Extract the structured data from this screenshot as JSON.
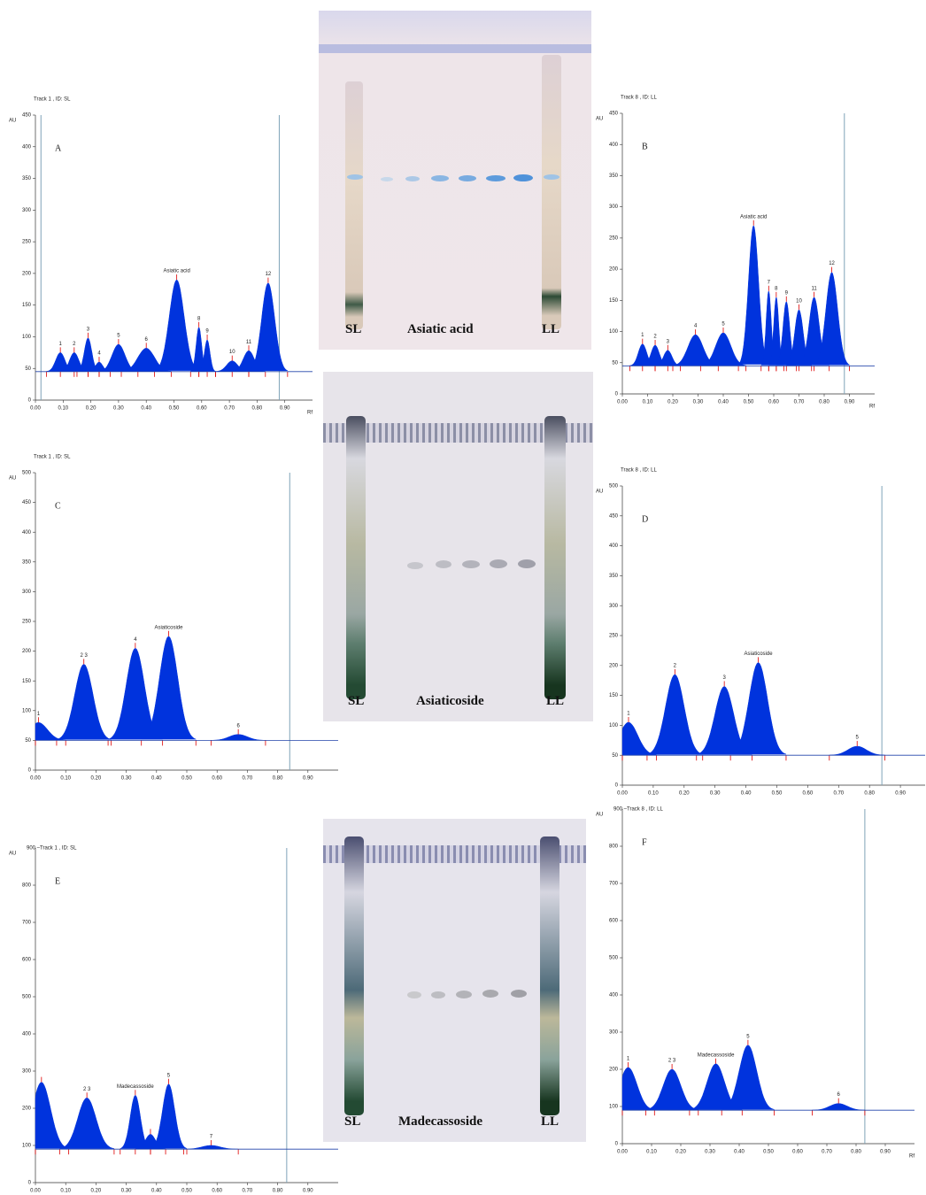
{
  "chart_data": [
    {
      "type": "area",
      "title": "Track 1 , ID: SL",
      "panel": "A",
      "ylabel": "AU",
      "xlabel": "Rf",
      "color": "#0033dd",
      "xlim": [
        0,
        1
      ],
      "ylim": [
        0,
        450
      ],
      "xticks": [
        {
          "value": 0,
          "label": "0.00"
        },
        {
          "value": 0.1,
          "label": "0.10"
        },
        {
          "value": 0.2,
          "label": "0.20"
        },
        {
          "value": 0.3,
          "label": "0.30"
        },
        {
          "value": 0.4,
          "label": "0.40"
        },
        {
          "value": 0.5,
          "label": "0.50"
        },
        {
          "value": 0.6,
          "label": "0.60"
        },
        {
          "value": 0.7,
          "label": "0.70"
        },
        {
          "value": 0.8,
          "label": "0.80"
        },
        {
          "value": 0.9,
          "label": "0.90"
        }
      ],
      "yticks": [
        0,
        50,
        100,
        150,
        200,
        250,
        300,
        350,
        400,
        450
      ],
      "baseline": 45,
      "limits": [
        0.02,
        0.88
      ],
      "peaks": [
        {
          "label": "1",
          "x": 0.09,
          "y": 75
        },
        {
          "label": "2",
          "x": 0.14,
          "y": 75
        },
        {
          "label": "3",
          "x": 0.19,
          "y": 98
        },
        {
          "label": "4",
          "x": 0.23,
          "y": 60
        },
        {
          "label": "5",
          "x": 0.3,
          "y": 88
        },
        {
          "label": "6",
          "x": 0.4,
          "y": 82
        },
        {
          "label": "Asiatic acid",
          "x": 0.51,
          "y": 190
        },
        {
          "label": "8",
          "x": 0.59,
          "y": 115
        },
        {
          "label": "9",
          "x": 0.62,
          "y": 95
        },
        {
          "label": "10",
          "x": 0.71,
          "y": 62
        },
        {
          "label": "11",
          "x": 0.77,
          "y": 78
        },
        {
          "label": "12",
          "x": 0.84,
          "y": 185
        }
      ]
    },
    {
      "type": "area",
      "title": "Track 8 , ID: LL",
      "panel": "B",
      "ylabel": "AU",
      "xlabel": "Rf",
      "color": "#0033dd",
      "xlim": [
        0,
        1
      ],
      "ylim": [
        0,
        450
      ],
      "xticks": [
        {
          "value": 0,
          "label": "0.00"
        },
        {
          "value": 0.1,
          "label": "0.10"
        },
        {
          "value": 0.2,
          "label": "0.20"
        },
        {
          "value": 0.3,
          "label": "0.30"
        },
        {
          "value": 0.4,
          "label": "0.40"
        },
        {
          "value": 0.5,
          "label": "0.50"
        },
        {
          "value": 0.6,
          "label": "0.60"
        },
        {
          "value": 0.7,
          "label": "0.70"
        },
        {
          "value": 0.8,
          "label": "0.80"
        },
        {
          "value": 0.9,
          "label": "0.90"
        }
      ],
      "yticks": [
        0,
        50,
        100,
        150,
        200,
        250,
        300,
        350,
        400,
        450
      ],
      "baseline": 45,
      "limits": [
        0.88
      ],
      "peaks": [
        {
          "label": "1",
          "x": 0.08,
          "y": 80
        },
        {
          "label": "2",
          "x": 0.13,
          "y": 78
        },
        {
          "label": "3",
          "x": 0.18,
          "y": 70
        },
        {
          "label": "4",
          "x": 0.29,
          "y": 95
        },
        {
          "label": "5",
          "x": 0.4,
          "y": 98
        },
        {
          "label": "Asiatic acid",
          "x": 0.52,
          "y": 270
        },
        {
          "label": "7",
          "x": 0.58,
          "y": 165
        },
        {
          "label": "8",
          "x": 0.61,
          "y": 155
        },
        {
          "label": "9",
          "x": 0.65,
          "y": 148
        },
        {
          "label": "10",
          "x": 0.7,
          "y": 135
        },
        {
          "label": "11",
          "x": 0.76,
          "y": 155
        },
        {
          "label": "12",
          "x": 0.83,
          "y": 195
        }
      ]
    },
    {
      "type": "area",
      "title": "Track 1 , ID: SL",
      "panel": "C",
      "ylabel": "AU",
      "xlabel": null,
      "color": "#0033dd",
      "xlim": [
        0,
        1
      ],
      "ylim": [
        0,
        500
      ],
      "xticks": [
        {
          "value": 0,
          "label": "0.00"
        },
        {
          "value": 0.1,
          "label": "0.10"
        },
        {
          "value": 0.2,
          "label": "0.20"
        },
        {
          "value": 0.3,
          "label": "0.30"
        },
        {
          "value": 0.4,
          "label": "0.40"
        },
        {
          "value": 0.5,
          "label": "0.50"
        },
        {
          "value": 0.6,
          "label": "0.60"
        },
        {
          "value": 0.7,
          "label": "0.70"
        },
        {
          "value": 0.8,
          "label": "0.80"
        },
        {
          "value": 0.9,
          "label": "0.90"
        }
      ],
      "yticks": [
        0,
        50,
        100,
        150,
        200,
        250,
        300,
        350,
        400,
        450,
        500
      ],
      "baseline": 50,
      "limits": [
        0.84
      ],
      "peaks": [
        {
          "label": "1",
          "x": 0.01,
          "y": 80
        },
        {
          "label": "2 3",
          "x": 0.16,
          "y": 178
        },
        {
          "label": "4",
          "x": 0.33,
          "y": 205
        },
        {
          "label": "Asiaticoside",
          "x": 0.44,
          "y": 225
        },
        {
          "label": "6",
          "x": 0.67,
          "y": 60
        }
      ]
    },
    {
      "type": "area",
      "title": "Track 8 , ID: LL",
      "panel": "D",
      "ylabel": "AU",
      "xlabel": null,
      "color": "#0033dd",
      "xlim": [
        0,
        0.98
      ],
      "ylim": [
        0,
        500
      ],
      "xticks": [
        {
          "value": 0,
          "label": "0.00"
        },
        {
          "value": 0.1,
          "label": "0.10"
        },
        {
          "value": 0.2,
          "label": "0.20"
        },
        {
          "value": 0.3,
          "label": "0.30"
        },
        {
          "value": 0.4,
          "label": "0.40"
        },
        {
          "value": 0.5,
          "label": "0.50"
        },
        {
          "value": 0.6,
          "label": "0.60"
        },
        {
          "value": 0.7,
          "label": "0.70"
        },
        {
          "value": 0.8,
          "label": "0.80"
        },
        {
          "value": 0.9,
          "label": "0.90"
        }
      ],
      "yticks": [
        0,
        50,
        100,
        150,
        200,
        250,
        300,
        350,
        400,
        450,
        500
      ],
      "baseline": 50,
      "limits": [
        0.84
      ],
      "peaks": [
        {
          "label": "1",
          "x": 0.02,
          "y": 105
        },
        {
          "label": "2",
          "x": 0.17,
          "y": 185
        },
        {
          "label": "3",
          "x": 0.33,
          "y": 165
        },
        {
          "label": "Asiaticoside",
          "x": 0.44,
          "y": 205
        },
        {
          "label": "5",
          "x": 0.76,
          "y": 65
        }
      ]
    },
    {
      "type": "area",
      "title": "900 –Track 1 , ID: SL",
      "panel": "E",
      "ylabel": "AU",
      "xlabel": null,
      "color": "#0033dd",
      "xlim": [
        0,
        1
      ],
      "ylim": [
        0,
        900
      ],
      "xticks": [
        {
          "value": 0,
          "label": "0.00"
        },
        {
          "value": 0.1,
          "label": "0.10"
        },
        {
          "value": 0.2,
          "label": "0.20"
        },
        {
          "value": 0.3,
          "label": "0.30"
        },
        {
          "value": 0.4,
          "label": "0.40"
        },
        {
          "value": 0.5,
          "label": "0.50"
        },
        {
          "value": 0.6,
          "label": "0.60"
        },
        {
          "value": 0.7,
          "label": "0.70"
        },
        {
          "value": 0.8,
          "label": "0.80"
        },
        {
          "value": 0.9,
          "label": "0.90"
        }
      ],
      "yticks": [
        0,
        100,
        200,
        300,
        400,
        500,
        600,
        700,
        800
      ],
      "baseline": 90,
      "limits": [
        0.83
      ],
      "peaks": [
        {
          "label": null,
          "x": 0.02,
          "y": 270
        },
        {
          "label": "2 3",
          "x": 0.17,
          "y": 228
        },
        {
          "label": "Madecassoside",
          "x": 0.33,
          "y": 235
        },
        {
          "label": null,
          "x": 0.38,
          "y": 130
        },
        {
          "label": "5",
          "x": 0.44,
          "y": 265
        },
        {
          "label": "7",
          "x": 0.58,
          "y": 100
        }
      ]
    },
    {
      "type": "area",
      "title": "900 –Track 8 , ID: LL",
      "panel": "F",
      "ylabel": "AU",
      "xlabel": "Rf",
      "color": "#0033dd",
      "xlim": [
        0,
        1
      ],
      "ylim": [
        0,
        900
      ],
      "xticks": [
        {
          "value": 0,
          "label": "0.00"
        },
        {
          "value": 0.1,
          "label": "0.10"
        },
        {
          "value": 0.2,
          "label": "0.20"
        },
        {
          "value": 0.3,
          "label": "0.30"
        },
        {
          "value": 0.4,
          "label": "0.40"
        },
        {
          "value": 0.5,
          "label": "0.50"
        },
        {
          "value": 0.6,
          "label": "0.60"
        },
        {
          "value": 0.7,
          "label": "0.70"
        },
        {
          "value": 0.8,
          "label": "0.80"
        },
        {
          "value": 0.9,
          "label": "0.90"
        }
      ],
      "yticks": [
        0,
        100,
        200,
        300,
        400,
        500,
        600,
        700,
        800
      ],
      "baseline": 90,
      "limits": [
        0.83
      ],
      "peaks": [
        {
          "label": "1",
          "x": 0.02,
          "y": 205
        },
        {
          "label": "2 3",
          "x": 0.17,
          "y": 200
        },
        {
          "label": "Madecassoside",
          "x": 0.32,
          "y": 215
        },
        {
          "label": "5",
          "x": 0.43,
          "y": 265
        },
        {
          "label": "6",
          "x": 0.74,
          "y": 108
        }
      ]
    }
  ],
  "plates": [
    {
      "left": "SL",
      "center": "Asiatic acid",
      "right": "LL"
    },
    {
      "left": "SL",
      "center": "Asiaticoside",
      "right": "LL"
    },
    {
      "left": "SL",
      "center": "Madecassoside",
      "right": "LL"
    }
  ]
}
